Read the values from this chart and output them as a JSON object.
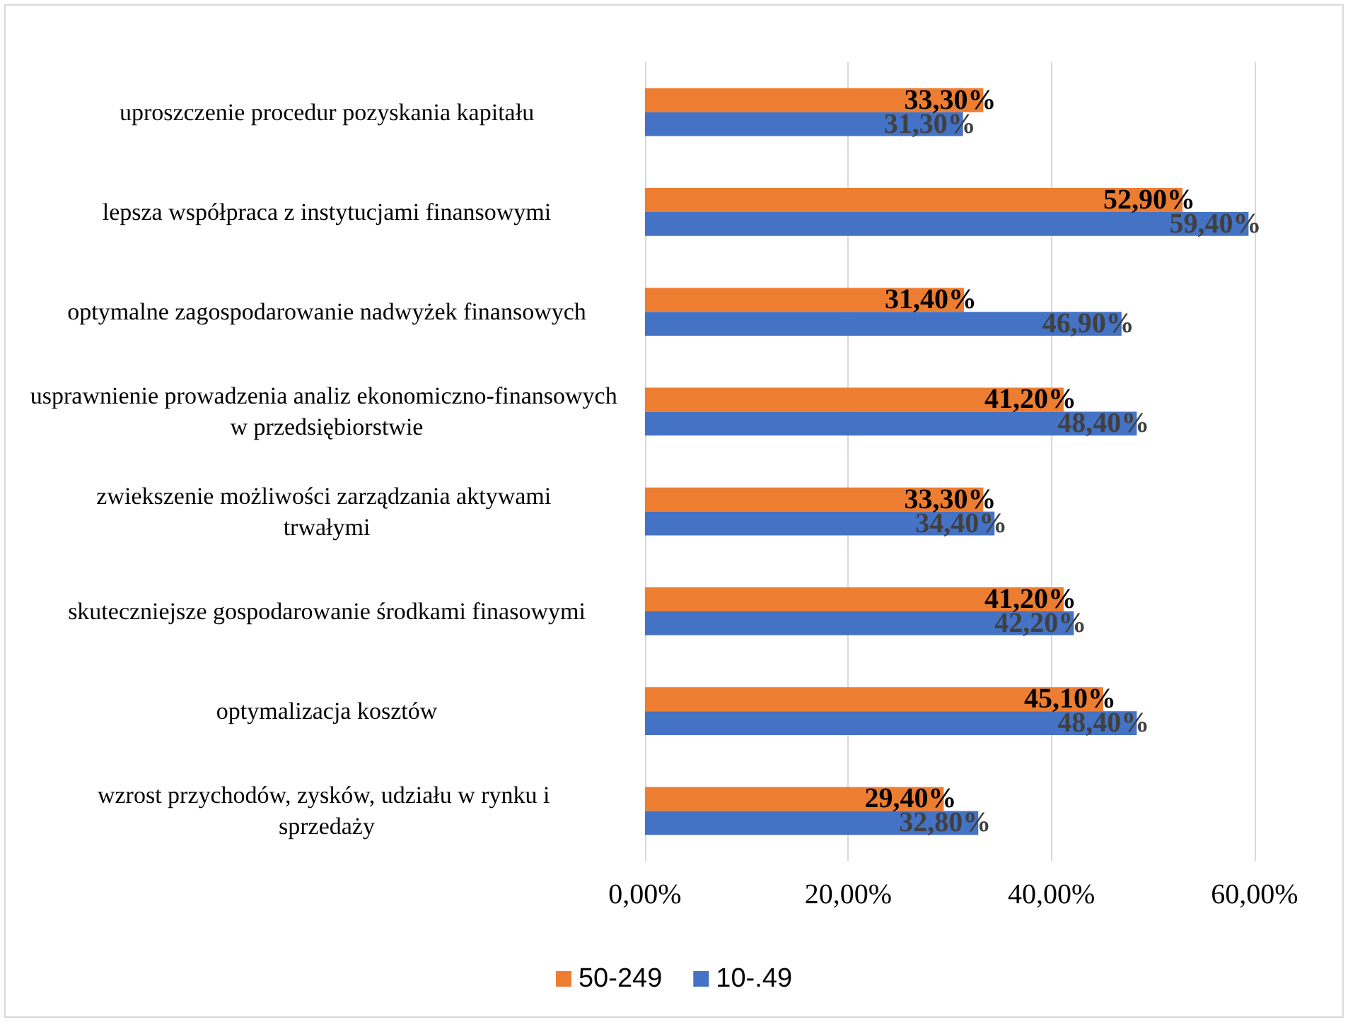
{
  "chart_data": {
    "type": "bar",
    "orientation": "horizontal",
    "categories": [
      "uproszczenie procedur pozyskania kapitału",
      "lepsza współpraca z instytucjami finansowymi",
      "optymalne zagospodarowanie nadwyżek finansowych",
      "usprawnienie prowadzenia analiz ekonomiczno-finansowych w przedsiębiorstwie",
      "zwiekszenie możliwości zarządzania aktywami trwałymi",
      "skuteczniejsze gospodarowanie środkami finasowymi",
      "optymalizacja kosztów",
      "wzrost przychodów, zysków, udziału w rynku i sprzedaży"
    ],
    "series": [
      {
        "name": "50-249",
        "color": "#ed7d31",
        "values": [
          33.3,
          52.9,
          31.4,
          41.2,
          33.3,
          41.2,
          45.1,
          29.4
        ],
        "value_labels": [
          "33,30%",
          "52,90%",
          "31,40%",
          "41,20%",
          "33,30%",
          "41,20%",
          "45,10%",
          "29,40%"
        ]
      },
      {
        "name": "10-.49",
        "color": "#4472c4",
        "values": [
          31.3,
          59.4,
          46.9,
          48.4,
          34.4,
          42.2,
          48.4,
          32.8
        ],
        "value_labels": [
          "31,30%",
          "59,40%",
          "46,90%",
          "48,40%",
          "34,40%",
          "42,20%",
          "48,40%",
          "32,80%"
        ]
      }
    ],
    "xlim": [
      0,
      60
    ],
    "xticks": [
      {
        "value": 0,
        "label": "0,00%"
      },
      {
        "value": 20,
        "label": "20,00%"
      },
      {
        "value": 40,
        "label": "40,00%"
      },
      {
        "value": 60,
        "label": "60,00%"
      }
    ],
    "grid": "x",
    "legend": "bottom"
  }
}
